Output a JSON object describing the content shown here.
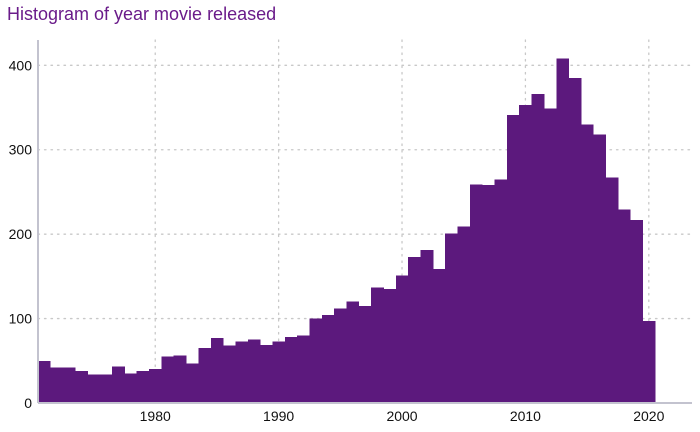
{
  "chart_data": {
    "type": "bar",
    "title": "Histogram of year movie released",
    "xlabel": "",
    "ylabel": "",
    "bin_width": 1,
    "x": [
      1971,
      1972,
      1973,
      1974,
      1975,
      1976,
      1977,
      1978,
      1979,
      1980,
      1981,
      1982,
      1983,
      1984,
      1985,
      1986,
      1987,
      1988,
      1989,
      1990,
      1991,
      1992,
      1993,
      1994,
      1995,
      1996,
      1997,
      1998,
      1999,
      2000,
      2001,
      2002,
      2003,
      2004,
      2005,
      2006,
      2007,
      2008,
      2009,
      2010,
      2011,
      2012,
      2013,
      2014,
      2015,
      2016,
      2017,
      2018,
      2019,
      2020
    ],
    "values": [
      50,
      42,
      42,
      38,
      34,
      34,
      43,
      35,
      38,
      40,
      55,
      56,
      47,
      65,
      77,
      68,
      73,
      75,
      69,
      73,
      78,
      80,
      100,
      104,
      112,
      120,
      115,
      137,
      135,
      151,
      173,
      181,
      159,
      201,
      209,
      259,
      258,
      265,
      341,
      353,
      366,
      349,
      408,
      385,
      330,
      318,
      267,
      229,
      217,
      97
    ],
    "xlim": [
      1970.5,
      2023.5
    ],
    "ylim": [
      0,
      430
    ],
    "xticks": [
      1980,
      1990,
      2000,
      2010,
      2020
    ],
    "xtick_labels": [
      "1980",
      "1990",
      "2000",
      "2010",
      "2020"
    ],
    "yticks": [
      0,
      100,
      200,
      300,
      400
    ],
    "ytick_labels": [
      "0",
      "100",
      "200",
      "300",
      "400"
    ],
    "grid": true,
    "bar_color": "#5c197d",
    "title_color": "#6a1b8a",
    "grid_color": "#c8c8c8",
    "axis_color": "#c3c3cf"
  }
}
